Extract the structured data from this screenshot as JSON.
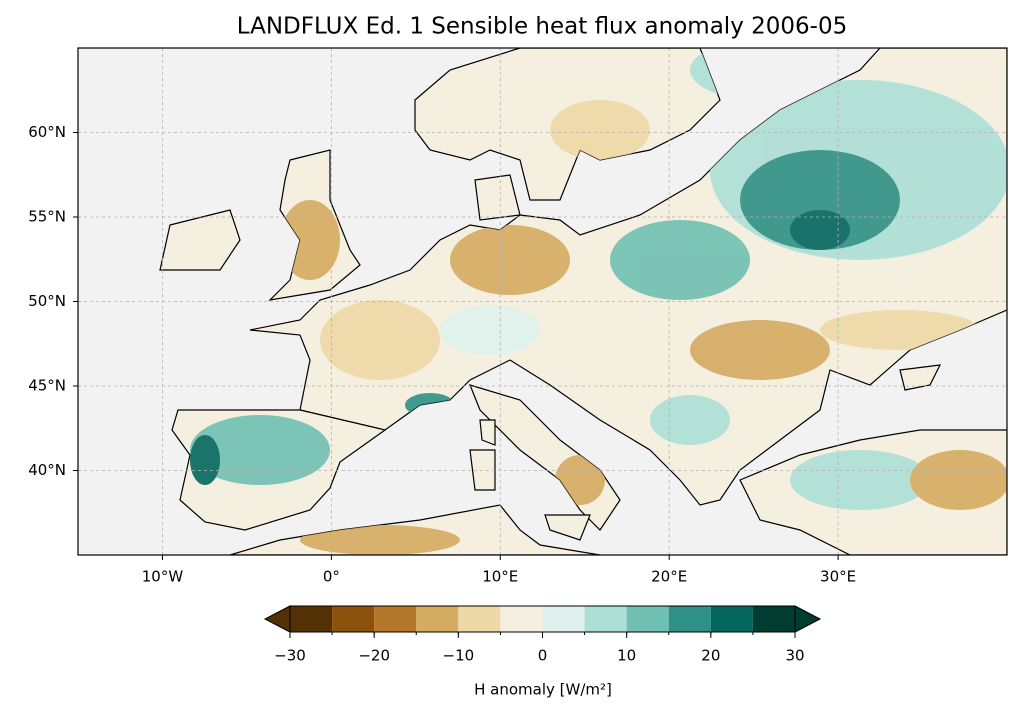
{
  "chart_data": {
    "type": "map",
    "title": "LANDFLUX Ed. 1 Sensible heat flux anomaly 2006-05",
    "xlim": [
      -15,
      40
    ],
    "ylim": [
      35,
      65
    ],
    "xticks": [
      {
        "value": -10,
        "label": "10°W"
      },
      {
        "value": 0,
        "label": "0°"
      },
      {
        "value": 10,
        "label": "10°E"
      },
      {
        "value": 20,
        "label": "20°E"
      },
      {
        "value": 30,
        "label": "30°E"
      }
    ],
    "yticks": [
      {
        "value": 40,
        "label": "40°N"
      },
      {
        "value": 45,
        "label": "45°N"
      },
      {
        "value": 50,
        "label": "50°N"
      },
      {
        "value": 55,
        "label": "55°N"
      },
      {
        "value": 60,
        "label": "60°N"
      }
    ],
    "grid": true,
    "colorbar": {
      "levels": [
        -30,
        -25,
        -20,
        -15,
        -10,
        -5,
        0,
        5,
        10,
        15,
        20,
        25,
        30
      ],
      "colors": [
        "#543005",
        "#8c510a",
        "#b47628",
        "#d5aa61",
        "#eed8a6",
        "#f5efdf",
        "#dff1ee",
        "#acdfd6",
        "#6fbfb2",
        "#2e9086",
        "#03665e",
        "#013c31"
      ],
      "extend": "both",
      "ticks": [
        {
          "value": -30,
          "label": "−30"
        },
        {
          "value": -20,
          "label": "−20"
        },
        {
          "value": -10,
          "label": "−10"
        },
        0,
        10,
        20,
        30
      ],
      "label": "H anomaly [W/m²]"
    }
  }
}
